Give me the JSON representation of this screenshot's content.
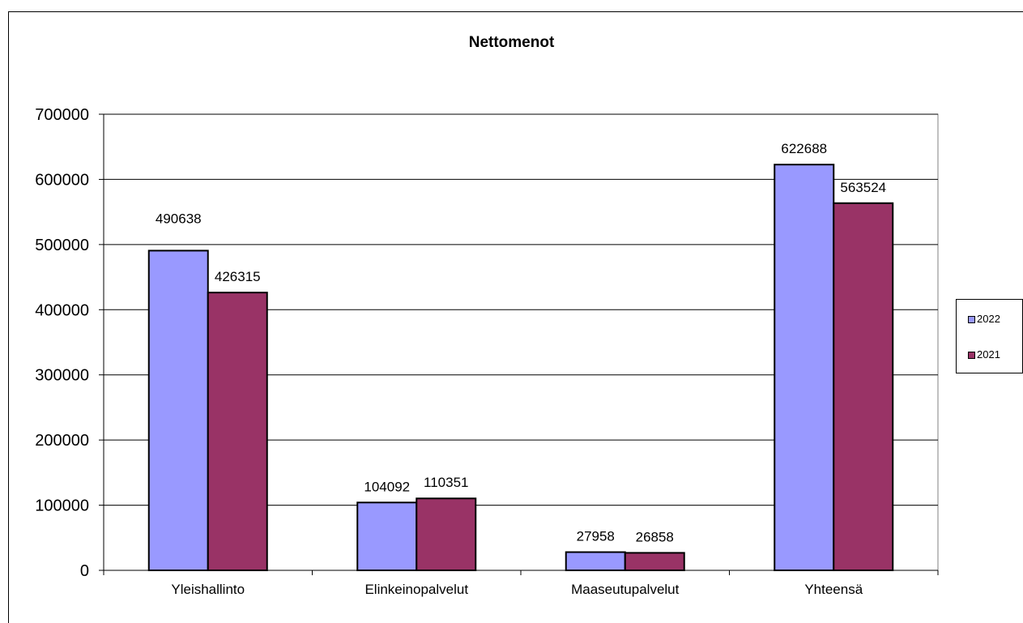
{
  "chart_data": {
    "type": "bar",
    "title": "Nettomenot",
    "xlabel": "",
    "ylabel": "",
    "categories": [
      "Yleishallinto",
      "Elinkeinopalvelut",
      "Maaseutupalvelut",
      "Yhteensä"
    ],
    "series": [
      {
        "name": "2022",
        "values": [
          490638,
          104092,
          27958,
          622688
        ],
        "color": "#9999ff"
      },
      {
        "name": "2021",
        "values": [
          426315,
          110351,
          26858,
          563524
        ],
        "color": "#993366"
      }
    ],
    "ylim": [
      0,
      700000
    ],
    "yticks": [
      "0",
      "100000",
      "200000",
      "300000",
      "400000",
      "500000",
      "600000",
      "700000"
    ],
    "grid": true,
    "legend_position": "right"
  }
}
